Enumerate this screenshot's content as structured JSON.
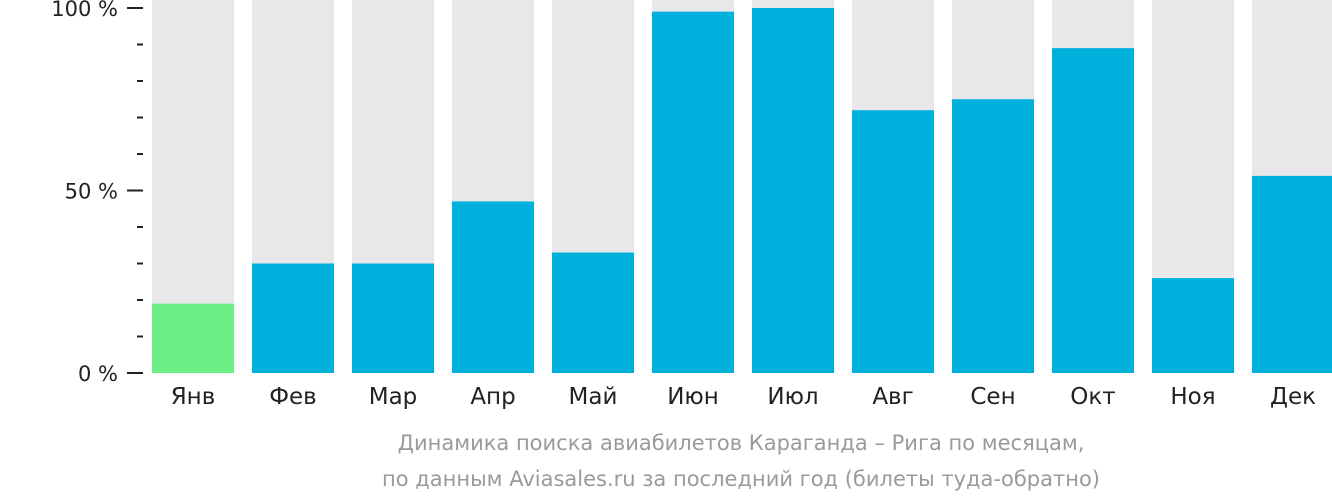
{
  "chart_data": {
    "type": "bar",
    "categories": [
      "Янв",
      "Фев",
      "Мар",
      "Апр",
      "Май",
      "Июн",
      "Июл",
      "Авг",
      "Сен",
      "Окт",
      "Ноя",
      "Дек"
    ],
    "values": [
      19,
      30,
      30,
      47,
      33,
      99,
      100,
      72,
      75,
      89,
      26,
      54
    ],
    "highlight_index": 0,
    "ylim": [
      0,
      100
    ],
    "yticks": [
      {
        "value": 0,
        "label": "0 %"
      },
      {
        "value": 50,
        "label": "50 %"
      },
      {
        "value": 100,
        "label": "100 %"
      }
    ],
    "minor_tick_step": 10,
    "grid": false,
    "colors": {
      "bar": "#00b0dd",
      "highlight": "#6bef84",
      "background_bar": "#e8e8ea",
      "axis": "#222222"
    }
  },
  "caption": {
    "line1": "Динамика поиска авиабилетов Караганда – Рига по месяцам,",
    "line2": "по данным Aviasales.ru за последний год (билеты туда-обратно)"
  }
}
